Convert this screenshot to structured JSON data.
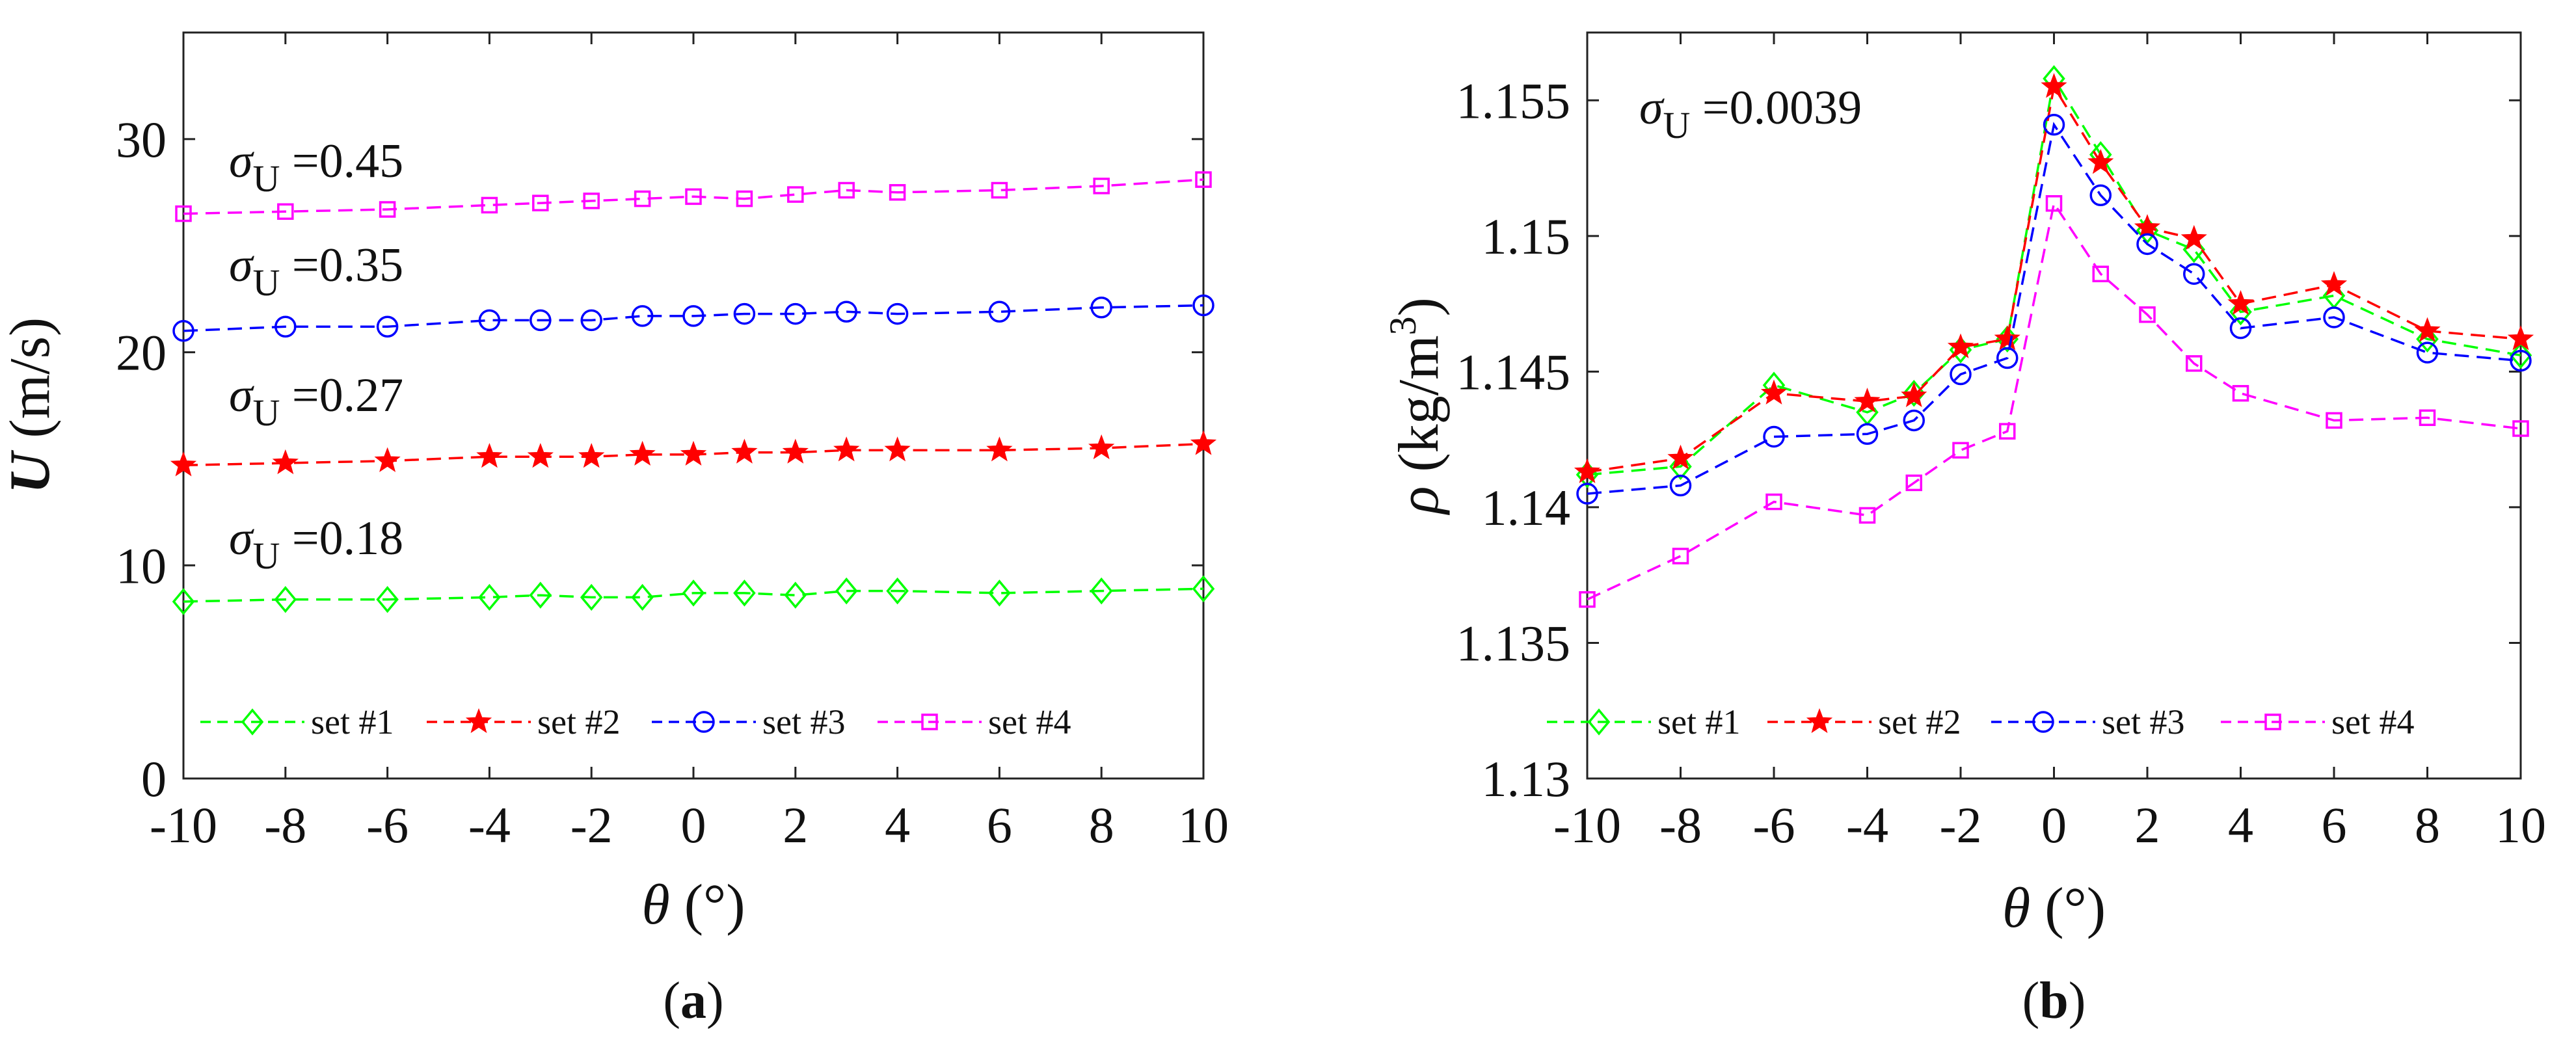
{
  "chart_data": [
    {
      "type": "line",
      "panel_label": "a",
      "panel_open": "(",
      "panel_close": ")",
      "xlabel_symbol": "θ",
      "xlabel_unit": "(°)",
      "ylabel_symbol": "U",
      "ylabel_unit": "(m/s)",
      "xlim": [
        -10,
        10
      ],
      "ylim": [
        0,
        35
      ],
      "xticks": [
        -10,
        -8,
        -6,
        -4,
        -2,
        0,
        2,
        4,
        6,
        8,
        10
      ],
      "yticks": [
        0,
        10,
        20,
        30
      ],
      "x": [
        -10,
        -8,
        -6,
        -4,
        -3,
        -2,
        -1,
        0,
        1,
        2,
        3,
        4,
        6,
        8,
        10
      ],
      "series": [
        {
          "name": "set #1",
          "color": "#00ff00",
          "marker": "diamond",
          "values": [
            8.3,
            8.4,
            8.4,
            8.5,
            8.6,
            8.5,
            8.5,
            8.7,
            8.7,
            8.6,
            8.8,
            8.8,
            8.7,
            8.8,
            8.9
          ]
        },
        {
          "name": "set #2",
          "color": "#ff0000",
          "marker": "star",
          "values": [
            14.7,
            14.8,
            14.9,
            15.1,
            15.1,
            15.1,
            15.2,
            15.2,
            15.3,
            15.3,
            15.4,
            15.4,
            15.4,
            15.5,
            15.7
          ]
        },
        {
          "name": "set #3",
          "color": "#0000ff",
          "marker": "circle",
          "values": [
            21.0,
            21.2,
            21.2,
            21.5,
            21.5,
            21.5,
            21.7,
            21.7,
            21.8,
            21.8,
            21.9,
            21.8,
            21.9,
            22.1,
            22.2
          ]
        },
        {
          "name": "set #4",
          "color": "#ff00ff",
          "marker": "square",
          "values": [
            26.5,
            26.6,
            26.7,
            26.9,
            27.0,
            27.1,
            27.2,
            27.3,
            27.2,
            27.4,
            27.6,
            27.5,
            27.6,
            27.8,
            28.1
          ]
        }
      ],
      "annotations": [
        {
          "sym": "σ",
          "sub": "U",
          "text": "=0.45"
        },
        {
          "sym": "σ",
          "sub": "U",
          "text": "=0.35"
        },
        {
          "sym": "σ",
          "sub": "U",
          "text": "=0.27"
        },
        {
          "sym": "σ",
          "sub": "U",
          "text": "=0.18"
        }
      ],
      "legend_location": "bottom"
    },
    {
      "type": "line",
      "panel_label": "b",
      "panel_open": "(",
      "panel_close": ")",
      "xlabel_symbol": "θ",
      "xlabel_unit": "(°)",
      "ylabel_symbol": "ρ",
      "ylabel_unit": "(kg/m",
      "ylabel_sup": "3",
      "ylabel_close": ")",
      "xlim": [
        -10,
        10
      ],
      "ylim": [
        1.13,
        1.1575
      ],
      "xticks": [
        -10,
        -8,
        -6,
        -4,
        -2,
        0,
        2,
        4,
        6,
        8,
        10
      ],
      "yticks": [
        1.13,
        1.135,
        1.14,
        1.145,
        1.15,
        1.155
      ],
      "ytick_labels": [
        "1.13",
        "1.135",
        "1.14",
        "1.145",
        "1.15",
        "1.155"
      ],
      "x": [
        -10,
        -8,
        -6,
        -4,
        -3,
        -2,
        -1,
        0,
        1,
        2,
        3,
        4,
        6,
        8,
        10
      ],
      "series": [
        {
          "name": "set #1",
          "color": "#00ff00",
          "marker": "diamond",
          "values": [
            1.1412,
            1.1415,
            1.1445,
            1.1435,
            1.1442,
            1.1458,
            1.1462,
            1.1558,
            1.153,
            1.1502,
            1.1495,
            1.1472,
            1.1478,
            1.1462,
            1.1456
          ]
        },
        {
          "name": "set #2",
          "color": "#ff0000",
          "marker": "star",
          "values": [
            1.1413,
            1.1418,
            1.1442,
            1.1439,
            1.1441,
            1.1459,
            1.1462,
            1.1555,
            1.1527,
            1.1503,
            1.1499,
            1.1475,
            1.1482,
            1.1465,
            1.1462
          ]
        },
        {
          "name": "set #3",
          "color": "#0000ff",
          "marker": "circle",
          "values": [
            1.1405,
            1.1408,
            1.1426,
            1.1427,
            1.1432,
            1.1449,
            1.1455,
            1.1541,
            1.1515,
            1.1497,
            1.1486,
            1.1466,
            1.147,
            1.1457,
            1.1454
          ]
        },
        {
          "name": "set #4",
          "color": "#ff00ff",
          "marker": "square",
          "values": [
            1.1366,
            1.1382,
            1.1402,
            1.1397,
            1.1409,
            1.1421,
            1.1428,
            1.1512,
            1.1486,
            1.1471,
            1.1453,
            1.1442,
            1.1432,
            1.1433,
            1.1429
          ]
        }
      ],
      "annotations": [
        {
          "sym": "σ",
          "sub": "U",
          "text": "=0.0039"
        }
      ],
      "legend_location": "bottom"
    }
  ]
}
